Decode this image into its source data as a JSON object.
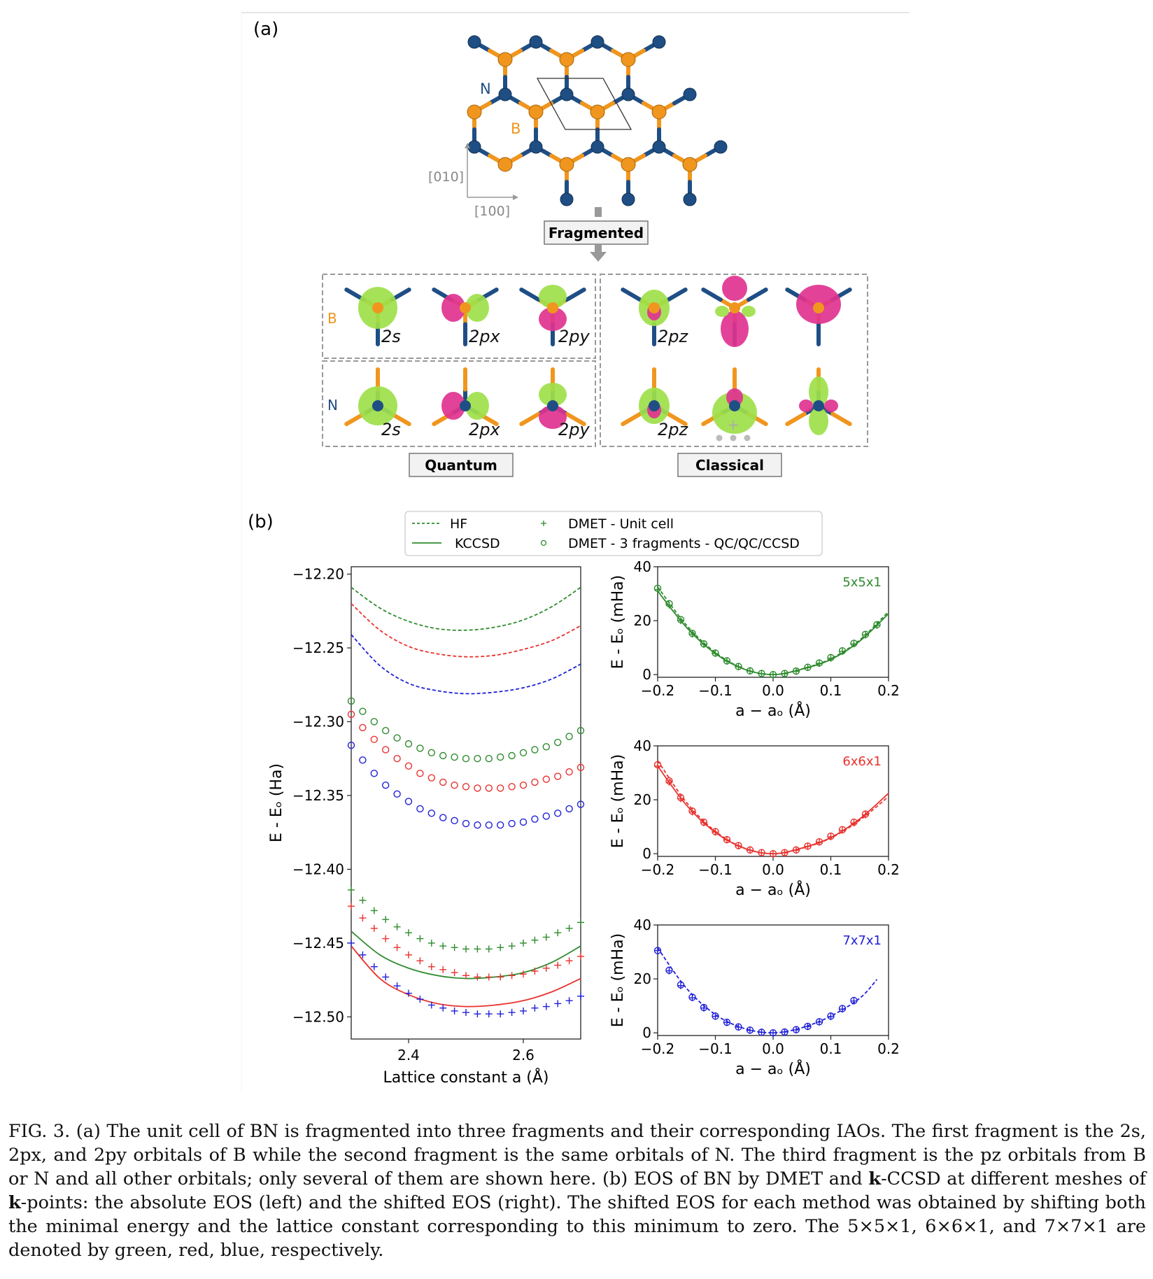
{
  "panel_a": {
    "label": "(a)",
    "atom_n": "N",
    "atom_b": "B",
    "axis_010": "[010]",
    "axis_100": "[100]",
    "fragmented": "Fragmented",
    "quantum": "Quantum",
    "classical": "Classical",
    "orbitals_b": [
      "2s",
      "2px",
      "2py"
    ],
    "orbitals_n": [
      "2s",
      "2px",
      "2py"
    ],
    "orbital_pz": "2pz",
    "plus": "+",
    "colors": {
      "boron": "#f0961e",
      "nitrogen": "#1f4e85",
      "green_lobe": "#9ee04a",
      "magenta_lobe": "#e0338f"
    }
  },
  "panel_b": {
    "label": "(b)",
    "legend": {
      "hf": "HF",
      "kccsd": "KCCSD",
      "dmet_unit": "DMET - Unit cell",
      "dmet_frag": "DMET - 3 fragments - QC/QC/CCSD"
    },
    "mesh_labels": [
      "5x5x1",
      "6x6x1",
      "7x7x1"
    ]
  },
  "chart_data": [
    {
      "type": "line",
      "xlabel": "Lattice constant a (Å)",
      "ylabel": "E - Eₒ (Ha)",
      "xlim": [
        2.3,
        2.7
      ],
      "ylim": [
        -12.515,
        -12.195
      ],
      "xticks": [
        2.4,
        2.6
      ],
      "yticks": [
        -12.2,
        -12.25,
        -12.3,
        -12.35,
        -12.4,
        -12.45,
        -12.5
      ],
      "series": [
        {
          "name": "HF",
          "mesh": "5x5x1",
          "color": "#2e8b2e",
          "style": "dashed",
          "x": [
            2.3,
            2.35,
            2.4,
            2.45,
            2.5,
            2.55,
            2.6,
            2.65,
            2.7
          ],
          "values": [
            -12.209,
            -12.223,
            -12.232,
            -12.237,
            -12.238,
            -12.236,
            -12.231,
            -12.222,
            -12.209
          ]
        },
        {
          "name": "HF",
          "mesh": "6x6x1",
          "color": "#e8322e",
          "style": "dashed",
          "x": [
            2.3,
            2.35,
            2.4,
            2.45,
            2.5,
            2.55,
            2.6,
            2.65,
            2.7
          ],
          "values": [
            -12.22,
            -12.238,
            -12.249,
            -12.254,
            -12.256,
            -12.255,
            -12.251,
            -12.245,
            -12.235
          ]
        },
        {
          "name": "HF",
          "mesh": "7x7x1",
          "color": "#2020d8",
          "style": "dashed",
          "x": [
            2.3,
            2.35,
            2.4,
            2.45,
            2.5,
            2.55,
            2.6,
            2.65,
            2.7
          ],
          "values": [
            -12.241,
            -12.262,
            -12.274,
            -12.279,
            -12.281,
            -12.28,
            -12.277,
            -12.271,
            -12.261
          ]
        },
        {
          "name": "KCCSD",
          "mesh": "5x5x1",
          "color": "#2e8b2e",
          "style": "solid",
          "x": [
            2.3,
            2.35,
            2.4,
            2.45,
            2.5,
            2.55,
            2.6,
            2.65,
            2.7
          ],
          "values": [
            -12.442,
            -12.458,
            -12.467,
            -12.472,
            -12.474,
            -12.473,
            -12.47,
            -12.463,
            -12.452
          ]
        },
        {
          "name": "KCCSD",
          "mesh": "6x6x1",
          "color": "#e8322e",
          "style": "solid",
          "x": [
            2.3,
            2.35,
            2.4,
            2.45,
            2.5,
            2.55,
            2.6,
            2.65,
            2.7
          ],
          "values": [
            -12.452,
            -12.474,
            -12.485,
            -12.491,
            -12.493,
            -12.492,
            -12.489,
            -12.483,
            -12.474
          ]
        },
        {
          "name": "DMET - Unit cell",
          "mesh": "5x5x1",
          "color": "#2e8b2e",
          "style": "plus",
          "x": [
            2.3,
            2.32,
            2.34,
            2.36,
            2.38,
            2.4,
            2.42,
            2.44,
            2.46,
            2.48,
            2.5,
            2.52,
            2.54,
            2.56,
            2.58,
            2.6,
            2.62,
            2.64,
            2.66,
            2.68,
            2.7
          ],
          "values": [
            -12.414,
            -12.421,
            -12.428,
            -12.434,
            -12.439,
            -12.443,
            -12.447,
            -12.45,
            -12.452,
            -12.453,
            -12.454,
            -12.454,
            -12.454,
            -12.453,
            -12.452,
            -12.45,
            -12.448,
            -12.446,
            -12.443,
            -12.44,
            -12.436
          ]
        },
        {
          "name": "DMET - Unit cell",
          "mesh": "6x6x1",
          "color": "#e8322e",
          "style": "plus",
          "x": [
            2.3,
            2.32,
            2.34,
            2.36,
            2.38,
            2.4,
            2.42,
            2.44,
            2.46,
            2.48,
            2.5,
            2.52,
            2.54,
            2.56,
            2.58,
            2.6,
            2.62,
            2.64,
            2.66,
            2.68,
            2.7
          ],
          "values": [
            -12.425,
            -12.433,
            -12.44,
            -12.447,
            -12.453,
            -12.458,
            -12.462,
            -12.466,
            -12.468,
            -12.47,
            -12.472,
            -12.473,
            -12.473,
            -12.473,
            -12.472,
            -12.471,
            -12.469,
            -12.467,
            -12.465,
            -12.462,
            -12.459
          ]
        },
        {
          "name": "DMET - Unit cell",
          "mesh": "7x7x1",
          "color": "#2020d8",
          "style": "plus",
          "x": [
            2.3,
            2.32,
            2.34,
            2.36,
            2.38,
            2.4,
            2.42,
            2.44,
            2.46,
            2.48,
            2.5,
            2.52,
            2.54,
            2.56,
            2.58,
            2.6,
            2.62,
            2.64,
            2.66,
            2.68,
            2.7
          ],
          "values": [
            -12.45,
            -12.458,
            -12.466,
            -12.473,
            -12.479,
            -12.484,
            -12.488,
            -12.492,
            -12.494,
            -12.496,
            -12.497,
            -12.498,
            -12.498,
            -12.498,
            -12.497,
            -12.496,
            -12.494,
            -12.493,
            -12.491,
            -12.489,
            -12.486
          ]
        },
        {
          "name": "DMET - 3 fragments - QC/QC/CCSD",
          "mesh": "5x5x1",
          "color": "#2e8b2e",
          "style": "circle",
          "x": [
            2.3,
            2.32,
            2.34,
            2.36,
            2.38,
            2.4,
            2.42,
            2.44,
            2.46,
            2.48,
            2.5,
            2.52,
            2.54,
            2.56,
            2.58,
            2.6,
            2.62,
            2.64,
            2.66,
            2.68,
            2.7
          ],
          "values": [
            -12.286,
            -12.293,
            -12.3,
            -12.306,
            -12.311,
            -12.315,
            -12.318,
            -12.321,
            -12.323,
            -12.324,
            -12.325,
            -12.325,
            -12.325,
            -12.324,
            -12.323,
            -12.321,
            -12.319,
            -12.317,
            -12.314,
            -12.31,
            -12.306
          ]
        },
        {
          "name": "DMET - 3 fragments - QC/QC/CCSD",
          "mesh": "6x6x1",
          "color": "#e8322e",
          "style": "circle",
          "x": [
            2.3,
            2.32,
            2.34,
            2.36,
            2.38,
            2.4,
            2.42,
            2.44,
            2.46,
            2.48,
            2.5,
            2.52,
            2.54,
            2.56,
            2.58,
            2.6,
            2.62,
            2.64,
            2.66,
            2.68,
            2.7
          ],
          "values": [
            -12.295,
            -12.304,
            -12.312,
            -12.319,
            -12.325,
            -12.33,
            -12.335,
            -12.338,
            -12.341,
            -12.343,
            -12.344,
            -12.345,
            -12.345,
            -12.345,
            -12.344,
            -12.343,
            -12.341,
            -12.339,
            -12.337,
            -12.334,
            -12.331
          ]
        },
        {
          "name": "DMET - 3 fragments - QC/QC/CCSD",
          "mesh": "7x7x1",
          "color": "#2020d8",
          "style": "circle",
          "x": [
            2.3,
            2.32,
            2.34,
            2.36,
            2.38,
            2.4,
            2.42,
            2.44,
            2.46,
            2.48,
            2.5,
            2.52,
            2.54,
            2.56,
            2.58,
            2.6,
            2.62,
            2.64,
            2.66,
            2.68,
            2.7
          ],
          "values": [
            -12.316,
            -12.326,
            -12.335,
            -12.343,
            -12.349,
            -12.354,
            -12.359,
            -12.362,
            -12.365,
            -12.367,
            -12.369,
            -12.37,
            -12.37,
            -12.37,
            -12.369,
            -12.368,
            -12.366,
            -12.364,
            -12.362,
            -12.359,
            -12.356
          ]
        }
      ]
    },
    {
      "type": "line",
      "mesh": "5x5x1",
      "xlabel": "a − aₒ (Å)",
      "ylabel": "E - Eₒ (mHa)",
      "xlim": [
        -0.2,
        0.2
      ],
      "ylim": [
        -1,
        40
      ],
      "xticks": [
        -0.2,
        -0.1,
        0.0,
        0.1,
        0.2
      ],
      "yticks": [
        0,
        20,
        40
      ],
      "color": "#2e8b2e",
      "curve_x": [
        -0.2,
        -0.15,
        -0.1,
        -0.05,
        0.0,
        0.05,
        0.1,
        0.15,
        0.2
      ],
      "hf_values": [
        32.5,
        18.3,
        8.2,
        2.1,
        0.0,
        2.1,
        5.9,
        12.8,
        23.4
      ],
      "kccsd_values": [
        31.0,
        17.5,
        7.8,
        2.0,
        0.0,
        2.0,
        5.6,
        12.4,
        22.6
      ],
      "points_x": [
        -0.2,
        -0.18,
        -0.16,
        -0.14,
        -0.12,
        -0.1,
        -0.08,
        -0.06,
        -0.04,
        -0.02,
        0.0,
        0.02,
        0.04,
        0.06,
        0.08,
        0.1,
        0.12,
        0.14,
        0.16,
        0.18
      ],
      "dmet_unit_values": [
        31.5,
        25.8,
        20.0,
        15.0,
        11.2,
        7.8,
        5.0,
        2.9,
        1.3,
        0.3,
        0.0,
        0.3,
        1.2,
        2.6,
        4.2,
        6.1,
        8.6,
        11.4,
        14.7,
        18.3
      ],
      "dmet_frag_values": [
        32.0,
        26.3,
        20.4,
        15.3,
        11.4,
        8.0,
        5.1,
        3.0,
        1.4,
        0.4,
        0.0,
        0.4,
        1.3,
        2.7,
        4.3,
        6.3,
        8.8,
        11.6,
        14.9,
        18.5
      ]
    },
    {
      "type": "line",
      "mesh": "6x6x1",
      "xlabel": "a − aₒ (Å)",
      "ylabel": "E - Eₒ (mHa)",
      "xlim": [
        -0.2,
        0.2
      ],
      "ylim": [
        -1,
        40
      ],
      "xticks": [
        -0.2,
        -0.1,
        0.0,
        0.1,
        0.2
      ],
      "yticks": [
        0,
        20,
        40
      ],
      "color": "#e8322e",
      "curve_x": [
        -0.2,
        -0.15,
        -0.1,
        -0.05,
        0.0,
        0.05,
        0.1,
        0.15,
        0.2
      ],
      "hf_values": [
        34.5,
        19.0,
        8.3,
        2.1,
        0.0,
        2.0,
        5.8,
        12.4,
        21.2
      ],
      "kccsd_values": [
        32.5,
        18.0,
        7.9,
        2.0,
        0.0,
        2.1,
        6.0,
        12.9,
        22.4
      ],
      "points_x": [
        -0.2,
        -0.18,
        -0.16,
        -0.14,
        -0.12,
        -0.1,
        -0.08,
        -0.06,
        -0.04,
        -0.02,
        0.0,
        0.02,
        0.04,
        0.06,
        0.08,
        0.1,
        0.12,
        0.14,
        0.16
      ],
      "dmet_unit_values": [
        32.5,
        26.5,
        20.4,
        15.5,
        11.5,
        8.0,
        5.1,
        2.9,
        1.3,
        0.3,
        0.0,
        0.3,
        1.3,
        2.7,
        4.3,
        6.3,
        8.7,
        11.4,
        14.4
      ],
      "dmet_frag_values": [
        33.0,
        27.0,
        20.8,
        15.8,
        11.7,
        8.2,
        5.2,
        3.0,
        1.4,
        0.4,
        0.0,
        0.4,
        1.4,
        2.8,
        4.4,
        6.5,
        8.9,
        11.7,
        14.7
      ]
    },
    {
      "type": "line",
      "mesh": "7x7x1",
      "xlabel": "a − aₒ (Å)",
      "ylabel": "E - Eₒ (mHa)",
      "xlim": [
        -0.2,
        0.2
      ],
      "ylim": [
        -1,
        40
      ],
      "xticks": [
        -0.2,
        -0.1,
        0.0,
        0.1,
        0.2
      ],
      "yticks": [
        0,
        20,
        40
      ],
      "color": "#2020d8",
      "curve_x": [
        -0.2,
        -0.15,
        -0.1,
        -0.05,
        0.0,
        0.05,
        0.1,
        0.15,
        0.18
      ],
      "hf_values": [
        31.5,
        16.5,
        6.8,
        1.6,
        0.0,
        1.9,
        6.2,
        12.8,
        19.8
      ],
      "points_x": [
        -0.2,
        -0.18,
        -0.16,
        -0.14,
        -0.12,
        -0.1,
        -0.08,
        -0.06,
        -0.04,
        -0.02,
        0.0,
        0.02,
        0.04,
        0.06,
        0.08,
        0.1,
        0.12,
        0.14
      ],
      "dmet_unit_values": [
        30.5,
        23.0,
        17.5,
        13.0,
        9.2,
        6.1,
        3.8,
        2.1,
        0.9,
        0.2,
        0.0,
        0.3,
        1.1,
        2.3,
        4.0,
        6.0,
        8.8,
        11.8
      ],
      "dmet_frag_values": [
        30.5,
        23.2,
        17.8,
        13.2,
        9.4,
        6.2,
        3.9,
        2.2,
        1.0,
        0.2,
        0.0,
        0.3,
        1.2,
        2.4,
        4.1,
        6.2,
        9.0,
        12.0
      ]
    }
  ],
  "caption": {
    "p1": "FIG. 3. (a) The unit cell of BN is fragmented into three fragments and their corresponding IAOs. The first fragment is the 2s, 2px, and 2py orbitals of B while the second fragment is the same orbitals of N. The third fragment is the pz orbitals from B or N and all other orbitals; only several of them are shown here. (b) EOS of BN by DMET and ",
    "bold_k1": "k",
    "p2": "-CCSD at different meshes of ",
    "bold_k2": "k",
    "p3": "-points: the absolute EOS (left) and the shifted EOS (right). The shifted EOS for each method was obtained by shifting both the minimal energy and the lattice constant corresponding to this minimum to zero. The 5×5×1, 6×6×1, and 7×7×1 are denoted by green, red, blue, respectively."
  }
}
